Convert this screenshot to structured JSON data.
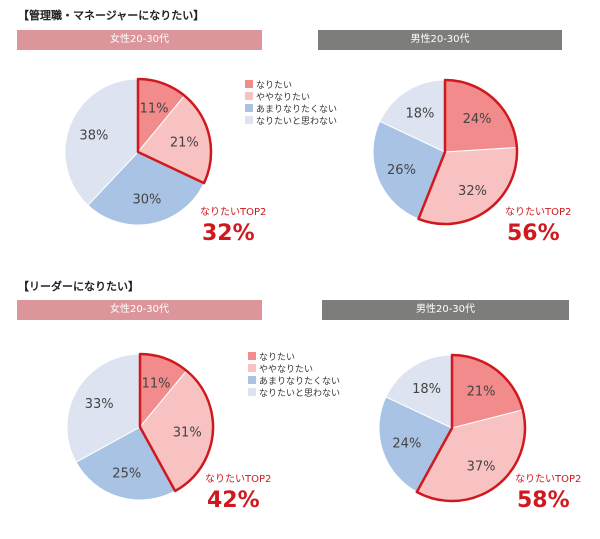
{
  "colors": {
    "nari": "#f28b8b",
    "yaya": "#f8c2c2",
    "amari": "#a9c3e5",
    "omowanai": "#dde3f0",
    "outline": "#d0191e",
    "female_bar": "#dc959a",
    "male_bar": "#7d7d7b"
  },
  "legend": [
    "なりたい",
    "ややなりたい",
    "あまりなりたくない",
    "なりたいと思わない"
  ],
  "chart_data": [
    {
      "type": "pie",
      "section": "【管理職・マネージャーになりたい】",
      "title": "女性20-30代",
      "values": [
        11,
        21,
        30,
        38
      ],
      "top2_label": "なりたいTOP2",
      "top2_value": "32%"
    },
    {
      "type": "pie",
      "section": "【管理職・マネージャーになりたい】",
      "title": "男性20-30代",
      "values": [
        24,
        32,
        26,
        18
      ],
      "top2_label": "なりたいTOP2",
      "top2_value": "56%"
    },
    {
      "type": "pie",
      "section": "【リーダーになりたい】",
      "title": "女性20-30代",
      "values": [
        11,
        31,
        25,
        33
      ],
      "top2_label": "なりたいTOP2",
      "top2_value": "42%"
    },
    {
      "type": "pie",
      "section": "【リーダーになりたい】",
      "title": "男性20-30代",
      "values": [
        21,
        37,
        24,
        18
      ],
      "top2_label": "なりたいTOP2",
      "top2_value": "58%"
    }
  ],
  "sections": [
    "【管理職・マネージャーになりたい】",
    "【リーダーになりたい】"
  ]
}
